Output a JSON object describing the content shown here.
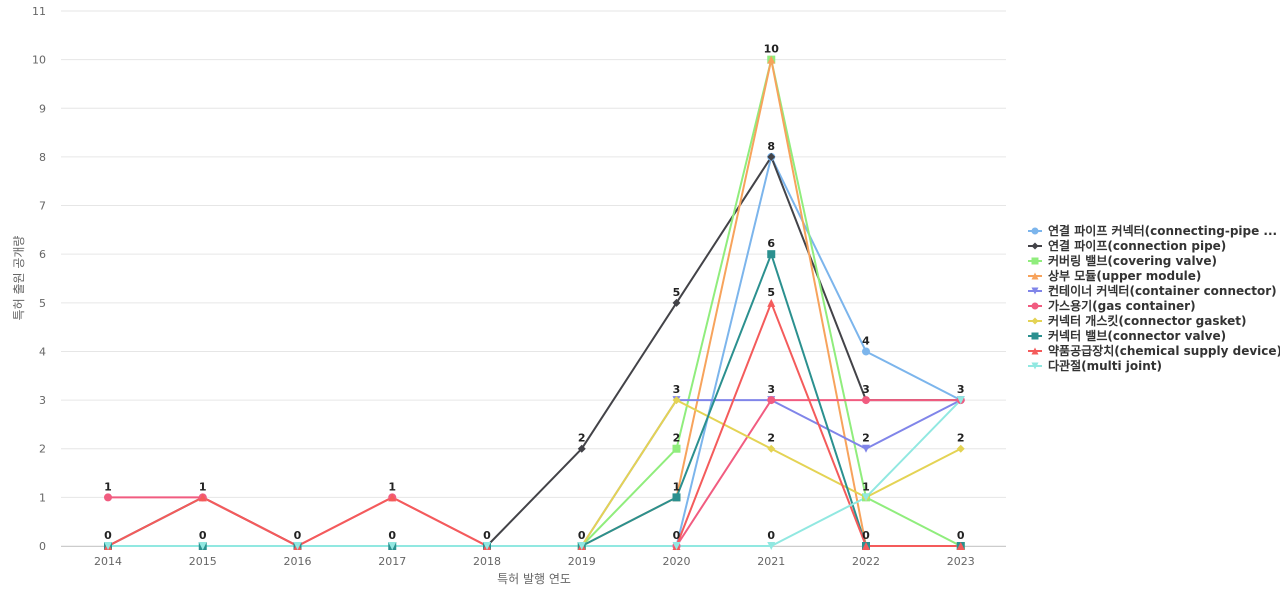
{
  "chart_data": {
    "type": "line",
    "xlabel": "특허 발행 연도",
    "ylabel": "특허 출원 공개량",
    "ylim": [
      0,
      11
    ],
    "y_ticks": [
      0,
      1,
      2,
      3,
      4,
      5,
      6,
      7,
      8,
      9,
      10,
      11
    ],
    "x": [
      "2014",
      "2015",
      "2016",
      "2017",
      "2018",
      "2019",
      "2020",
      "2021",
      "2022",
      "2023"
    ],
    "legend_placement": "right",
    "grid": "horizontal",
    "series": [
      {
        "name": "연결 파이프 커넥터(connecting-pipe ...",
        "color": "#7cb5ec",
        "marker": "circle",
        "values": [
          null,
          null,
          null,
          null,
          null,
          null,
          0,
          8,
          4,
          3
        ]
      },
      {
        "name": "연결 파이프(connection pipe)",
        "color": "#434348",
        "marker": "diamond",
        "values": [
          0,
          1,
          0,
          null,
          0,
          2,
          5,
          8,
          3,
          3
        ]
      },
      {
        "name": "커버링 밸브(covering valve)",
        "color": "#90ed7d",
        "marker": "square",
        "values": [
          null,
          null,
          null,
          null,
          null,
          0,
          2,
          10,
          1,
          0
        ]
      },
      {
        "name": "상부 모듈(upper module)",
        "color": "#f7a35c",
        "marker": "triangle",
        "values": [
          null,
          null,
          null,
          null,
          null,
          0,
          1,
          10,
          0,
          0
        ]
      },
      {
        "name": "컨테이너 커넥터(container connector)",
        "color": "#8085e9",
        "marker": "triangle-down",
        "values": [
          null,
          null,
          null,
          null,
          null,
          0,
          3,
          3,
          2,
          3
        ]
      },
      {
        "name": "가스용기(gas container)",
        "color": "#f15c80",
        "marker": "circle",
        "values": [
          1,
          1,
          0,
          1,
          0,
          null,
          0,
          3,
          3,
          3
        ]
      },
      {
        "name": "커넥터 개스킷(connector gasket)",
        "color": "#e4d354",
        "marker": "diamond",
        "values": [
          null,
          null,
          null,
          null,
          null,
          0,
          3,
          2,
          1,
          2
        ]
      },
      {
        "name": "커넥터 밸브(connector valve)",
        "color": "#2b908f",
        "marker": "square",
        "values": [
          0,
          0,
          0,
          0,
          0,
          0,
          1,
          6,
          0,
          0
        ]
      },
      {
        "name": "약품공급장치(chemical supply device)",
        "color": "#f45b5b",
        "marker": "triangle",
        "values": [
          0,
          1,
          0,
          1,
          0,
          0,
          0,
          5,
          0,
          0
        ]
      },
      {
        "name": "다관절(multi joint)",
        "color": "#91e8e1",
        "marker": "triangle-down",
        "values": [
          0,
          0,
          0,
          0,
          0,
          0,
          0,
          0,
          1,
          3
        ]
      }
    ],
    "data_labels": [
      {
        "x": "2014",
        "value": 1
      },
      {
        "x": "2014",
        "value": 0
      },
      {
        "x": "2015",
        "value": 1
      },
      {
        "x": "2015",
        "value": 0
      },
      {
        "x": "2016",
        "value": 0
      },
      {
        "x": "2017",
        "value": 1
      },
      {
        "x": "2017",
        "value": 0
      },
      {
        "x": "2018",
        "value": 0
      },
      {
        "x": "2019",
        "value": 2
      },
      {
        "x": "2019",
        "value": 0
      },
      {
        "x": "2020",
        "value": 5
      },
      {
        "x": "2020",
        "value": 3
      },
      {
        "x": "2020",
        "value": 2
      },
      {
        "x": "2020",
        "value": 1
      },
      {
        "x": "2020",
        "value": 0
      },
      {
        "x": "2021",
        "value": 10
      },
      {
        "x": "2021",
        "value": 8
      },
      {
        "x": "2021",
        "value": 6
      },
      {
        "x": "2021",
        "value": 5
      },
      {
        "x": "2021",
        "value": 3
      },
      {
        "x": "2021",
        "value": 2
      },
      {
        "x": "2021",
        "value": 0
      },
      {
        "x": "2022",
        "value": 4
      },
      {
        "x": "2022",
        "value": 3
      },
      {
        "x": "2022",
        "value": 2
      },
      {
        "x": "2022",
        "value": 1
      },
      {
        "x": "2022",
        "value": 0
      },
      {
        "x": "2023",
        "value": 3
      },
      {
        "x": "2023",
        "value": 2
      },
      {
        "x": "2023",
        "value": 0
      }
    ]
  }
}
